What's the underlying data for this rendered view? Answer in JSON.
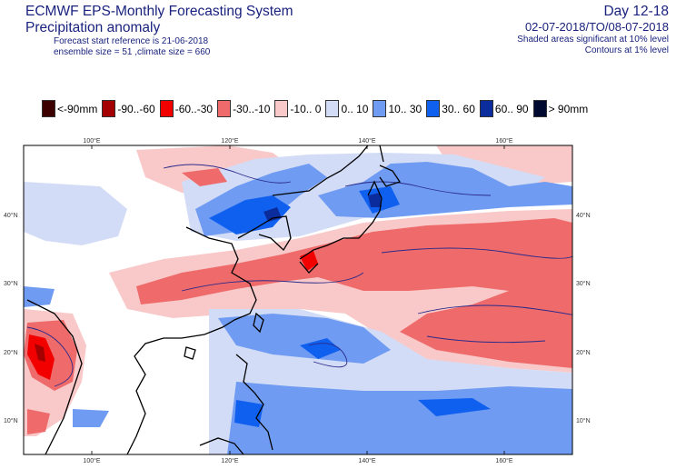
{
  "header": {
    "title": "ECMWF EPS-Monthly Forecasting System",
    "subtitle": "Precipitation anomaly",
    "forecast_ref": "Forecast start reference is 21-06-2018",
    "ensemble": "ensemble size = 51  ,climate size = 660",
    "day_range": "Day 12-18",
    "date_range": "02-07-2018/TO/08-07-2018",
    "shaded_note": "Shaded areas significant at 10% level",
    "contour_note": "Contours at 1% level"
  },
  "legend": [
    {
      "label": "<-90mm",
      "color": "#3d0000"
    },
    {
      "label": "-90..-60",
      "color": "#a50000"
    },
    {
      "label": "-60..-30",
      "color": "#f20000"
    },
    {
      "label": "-30..-10",
      "color": "#ef6b6b"
    },
    {
      "label": "-10..  0",
      "color": "#f9c9c9"
    },
    {
      "label": "0..  10",
      "color": "#d3dcf6"
    },
    {
      "label": "10..  30",
      "color": "#6f9cf2"
    },
    {
      "label": "30..  60",
      "color": "#1060f0"
    },
    {
      "label": "60..  90",
      "color": "#0b2c9c"
    },
    {
      "label": ">  90mm",
      "color": "#000a30"
    }
  ],
  "map": {
    "lon_labels": [
      "100°E",
      "120°E",
      "140°E",
      "160°E"
    ],
    "lat_labels": [
      "40°N",
      "30°N",
      "20°N",
      "10°N"
    ]
  }
}
